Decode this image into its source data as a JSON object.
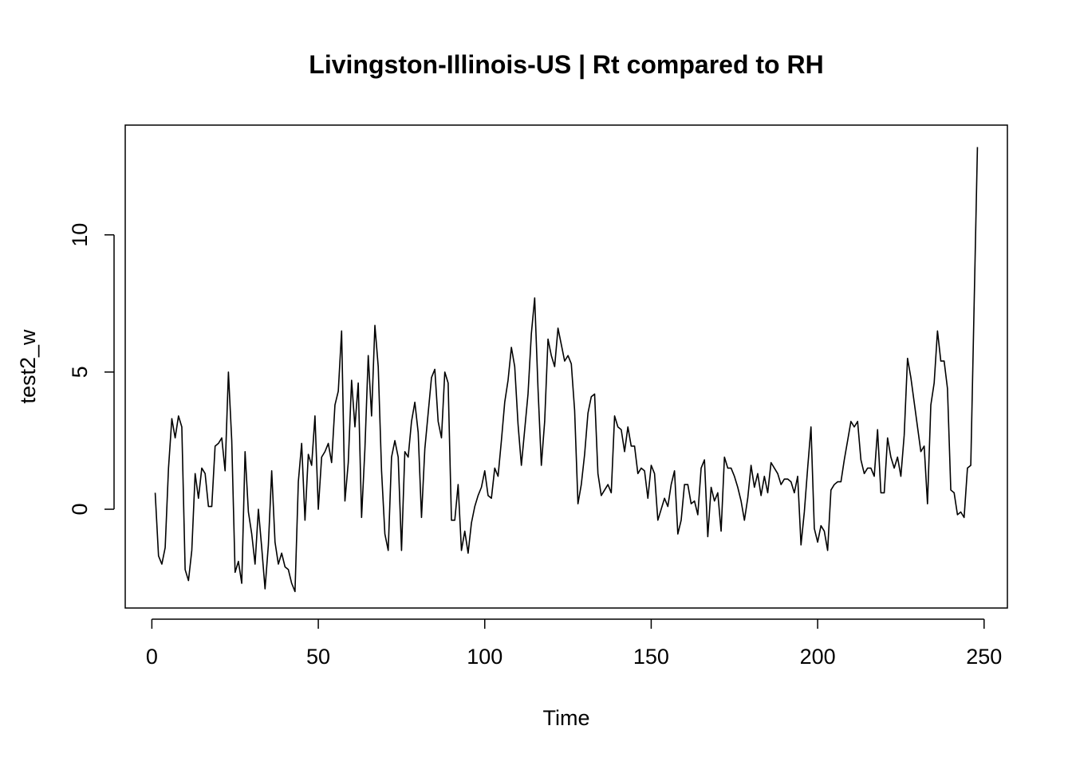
{
  "chart_data": {
    "type": "line",
    "title": "Livingston-Illinois-US | Rt compared to RH",
    "xlabel": "Time",
    "ylabel": "test2_w",
    "xlim": [
      -8,
      257
    ],
    "ylim": [
      -3.6,
      14.0
    ],
    "x_ticks": [
      0,
      50,
      100,
      150,
      200,
      250
    ],
    "y_ticks": [
      0,
      5,
      10
    ],
    "x_tick_labels": [
      "0",
      "50",
      "100",
      "150",
      "200",
      "250"
    ],
    "y_tick_labels": [
      "0",
      "5",
      "10"
    ],
    "grid": false,
    "legend": "none",
    "line_color": "#000000",
    "series": [
      {
        "x_start": 1,
        "values": [
          0.6,
          -1.7,
          -2.0,
          -1.4,
          1.5,
          3.3,
          2.6,
          3.4,
          3.0,
          -2.2,
          -2.6,
          -1.5,
          1.3,
          0.4,
          1.5,
          1.3,
          0.1,
          0.1,
          2.3,
          2.4,
          2.6,
          1.4,
          5.0,
          2.5,
          -2.3,
          -1.9,
          -2.7,
          2.1,
          -0.1,
          -0.9,
          -2.0,
          0.0,
          -1.4,
          -2.9,
          -1.3,
          1.4,
          -1.2,
          -2.0,
          -1.6,
          -2.1,
          -2.2,
          -2.7,
          -3.0,
          1.0,
          2.4,
          -0.4,
          2.0,
          1.6,
          3.4,
          0.0,
          1.9,
          2.1,
          2.4,
          1.7,
          3.8,
          4.3,
          6.5,
          0.3,
          1.7,
          4.7,
          3.0,
          4.6,
          -0.3,
          2.2,
          5.6,
          3.4,
          6.7,
          5.2,
          1.4,
          -0.9,
          -1.5,
          1.9,
          2.5,
          1.9,
          -1.5,
          2.1,
          1.9,
          3.2,
          3.9,
          2.8,
          -0.3,
          2.2,
          3.5,
          4.8,
          5.1,
          3.2,
          2.6,
          5.0,
          4.6,
          -0.4,
          -0.4,
          0.9,
          -1.5,
          -0.8,
          -1.6,
          -0.5,
          0.1,
          0.5,
          0.8,
          1.4,
          0.5,
          0.4,
          1.5,
          1.2,
          2.5,
          3.9,
          4.7,
          5.9,
          5.2,
          3.1,
          1.6,
          2.9,
          4.2,
          6.4,
          7.7,
          4.4,
          1.6,
          3.2,
          6.2,
          5.6,
          5.2,
          6.6,
          6.0,
          5.4,
          5.6,
          5.3,
          3.6,
          0.2,
          0.9,
          2.0,
          3.5,
          4.1,
          4.2,
          1.3,
          0.5,
          0.7,
          0.9,
          0.6,
          3.4,
          3.0,
          2.9,
          2.1,
          3.0,
          2.3,
          2.3,
          1.3,
          1.5,
          1.4,
          0.4,
          1.6,
          1.3,
          -0.4,
          0.0,
          0.4,
          0.1,
          0.9,
          1.4,
          -0.9,
          -0.4,
          0.9,
          0.9,
          0.2,
          0.3,
          -0.2,
          1.5,
          1.8,
          -1.0,
          0.8,
          0.3,
          0.6,
          -0.8,
          1.9,
          1.5,
          1.5,
          1.2,
          0.8,
          0.3,
          -0.4,
          0.4,
          1.6,
          0.8,
          1.3,
          0.5,
          1.2,
          0.6,
          1.7,
          1.5,
          1.3,
          0.9,
          1.1,
          1.1,
          1.0,
          0.6,
          1.2,
          -1.3,
          -0.1,
          1.5,
          3.0,
          -0.7,
          -1.2,
          -0.6,
          -0.8,
          -1.5,
          0.7,
          0.9,
          1.0,
          1.0,
          1.8,
          2.5,
          3.2,
          3.0,
          3.2,
          1.8,
          1.3,
          1.5,
          1.5,
          1.2,
          2.9,
          0.6,
          0.6,
          2.6,
          1.9,
          1.5,
          1.9,
          1.2,
          2.7,
          5.5,
          4.8,
          3.9,
          3.0,
          2.1,
          2.3,
          0.2,
          3.8,
          4.6,
          6.5,
          5.4,
          5.4,
          4.4,
          0.7,
          0.6,
          -0.2,
          -0.1,
          -0.3,
          1.5,
          1.6,
          7.4,
          13.2
        ]
      }
    ]
  }
}
